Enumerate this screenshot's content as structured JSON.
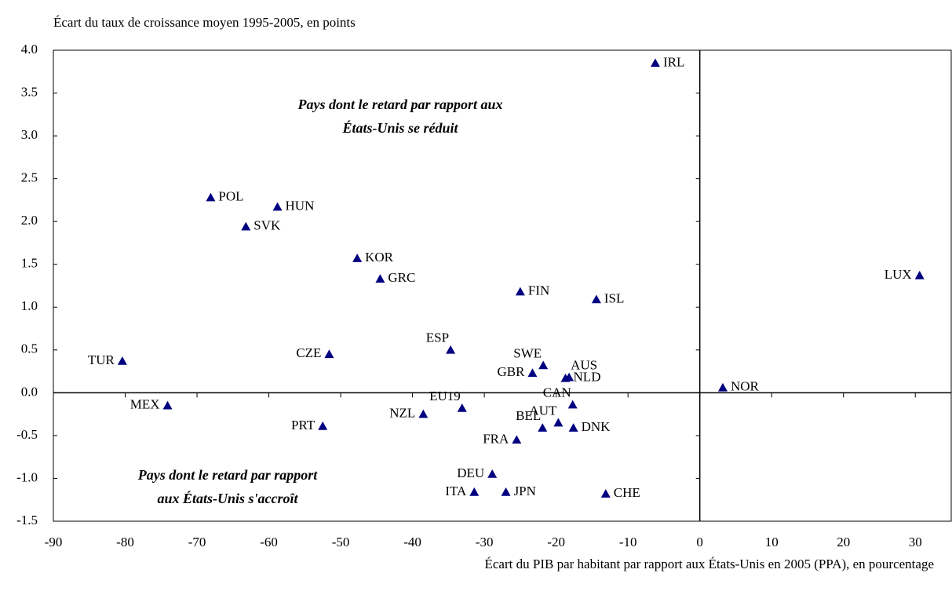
{
  "chart_data": {
    "type": "scatter",
    "y_label": "Écart du taux de croissance moyen 1995-2005, en points",
    "x_label": "Écart du PIB par habitant par rapport aux États-Unis en 2005 (PPA), en pourcentage",
    "annotations": [
      [
        "Pays dont le retard par rapport aux",
        "États-Unis se réduit"
      ],
      [
        "Pays dont le retard par rapport",
        "aux États-Unis s'accroît"
      ]
    ],
    "color": "#000080",
    "labels": [
      "IRL",
      "POL",
      "HUN",
      "SVK",
      "KOR",
      "GRC",
      "FIN",
      "ISL",
      "LUX",
      "TUR",
      "CZE",
      "ESP",
      "SWE",
      "GBR",
      "AUS",
      "NLD",
      "NOR",
      "MEX",
      "EU19",
      "NZL",
      "CAN",
      "AUT",
      "BEL",
      "DNK",
      "PRT",
      "FRA",
      "DEU",
      "ITA",
      "JPN",
      "CHE"
    ],
    "x": [
      -6.2,
      -68.1,
      -58.8,
      -63.2,
      -47.7,
      -44.5,
      -25.0,
      -14.4,
      30.6,
      -80.4,
      -51.6,
      -34.7,
      -21.8,
      -23.3,
      -18.2,
      -18.7,
      3.2,
      -74.1,
      -33.1,
      -38.5,
      -17.7,
      -19.7,
      -21.9,
      -17.6,
      -52.5,
      -25.5,
      -28.9,
      -31.4,
      -27.0,
      -13.1
    ],
    "y": [
      3.85,
      2.28,
      2.17,
      1.94,
      1.57,
      1.33,
      1.18,
      1.09,
      1.37,
      0.37,
      0.45,
      0.5,
      0.32,
      0.23,
      0.18,
      0.17,
      0.06,
      -0.15,
      -0.18,
      -0.25,
      -0.14,
      -0.35,
      -0.41,
      -0.41,
      -0.39,
      -0.55,
      -0.95,
      -1.16,
      -1.16,
      -1.18
    ],
    "xlim": [
      -90,
      35
    ],
    "xticks": [
      -90,
      -80,
      -70,
      -60,
      -50,
      -40,
      -30,
      -20,
      -10,
      0,
      10,
      20,
      30
    ],
    "ylim": [
      -1.5,
      4
    ],
    "yticks": [
      {
        "value": 4,
        "label": "4.0"
      },
      3.5,
      {
        "value": 3,
        "label": "3.0"
      },
      2.5,
      {
        "value": 2,
        "label": "2.0"
      },
      1.5,
      {
        "value": 1,
        "label": "1.0"
      },
      0.5,
      {
        "value": 0,
        "label": "0.0"
      },
      -0.5,
      {
        "value": -1,
        "label": "-1.0"
      },
      -1.5
    ]
  }
}
